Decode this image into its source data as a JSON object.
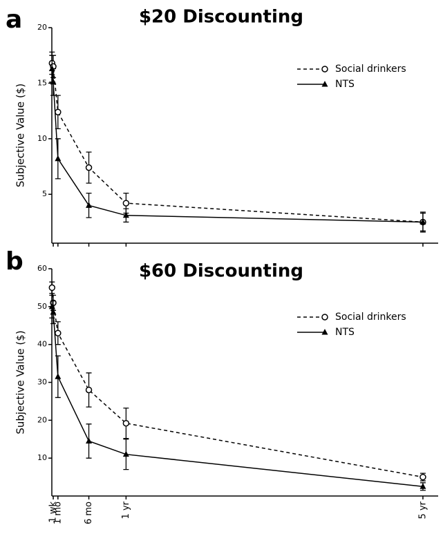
{
  "chart_data": [
    {
      "type": "line",
      "panel_label": "a",
      "title": "$20 Discounting",
      "y_label": "Subjective Value ($)",
      "x": [
        1,
        7,
        30,
        182,
        365,
        1825
      ],
      "xlim": [
        0,
        1900
      ],
      "xticks": [
        7,
        30,
        182,
        365,
        1825
      ],
      "xtick_labels": false,
      "ylim": [
        0.6,
        20
      ],
      "yticks": [
        5,
        10,
        15,
        20
      ],
      "legend": "upper right",
      "series": [
        {
          "name": "Social drinkers",
          "color": "#000000",
          "dash": true,
          "marker": "circle",
          "values": [
            16.8,
            16.5,
            12.4,
            7.4,
            4.2,
            2.5
          ],
          "errors": [
            1.0,
            1.0,
            1.5,
            1.4,
            0.9,
            0.9
          ]
        },
        {
          "name": "NTS",
          "color": "#000000",
          "dash": false,
          "marker": "triangle",
          "values": [
            16.3,
            15.1,
            8.2,
            4.0,
            3.1,
            2.5
          ],
          "errors": [
            1.2,
            1.2,
            1.8,
            1.1,
            0.6,
            0.8
          ]
        }
      ]
    },
    {
      "type": "line",
      "panel_label": "b",
      "title": "$60 Discounting",
      "y_label": "Subjective Value ($)",
      "x": [
        1,
        7,
        30,
        182,
        365,
        1825
      ],
      "xlim": [
        0,
        1900
      ],
      "xticks": [
        {
          "value": 7,
          "label": "1 wk"
        },
        {
          "value": 30,
          "label": "1 mo"
        },
        {
          "value": 182,
          "label": "6 mo"
        },
        {
          "value": 365,
          "label": "1 yr"
        },
        {
          "value": 1825,
          "label": "5 yr"
        }
      ],
      "xtick_labels": true,
      "ylim": [
        0,
        60
      ],
      "yticks": [
        10,
        20,
        30,
        40,
        50,
        60
      ],
      "legend": "upper right",
      "series": [
        {
          "name": "Social drinkers",
          "color": "#000000",
          "dash": true,
          "marker": "circle",
          "values": [
            55,
            51,
            43,
            28,
            19.2,
            5
          ],
          "errors": [
            1.5,
            2,
            3,
            4.5,
            4,
            1
          ]
        },
        {
          "name": "NTS",
          "color": "#000000",
          "dash": false,
          "marker": "triangle",
          "values": [
            50,
            48.5,
            31.5,
            14.5,
            11,
            2.5
          ],
          "errors": [
            3,
            3,
            5.5,
            4.5,
            4,
            1
          ]
        }
      ]
    }
  ]
}
